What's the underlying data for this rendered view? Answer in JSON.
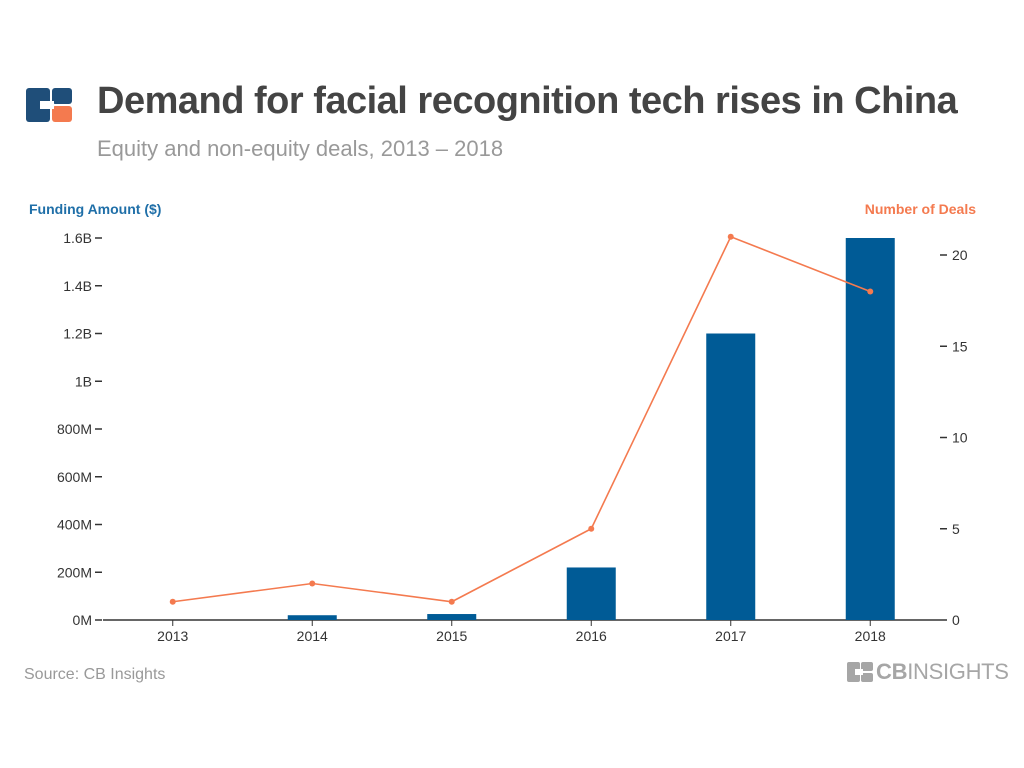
{
  "header": {
    "title": "Demand for facial recognition tech rises in China",
    "subtitle": "Equity and non-equity deals, 2013  –  2018"
  },
  "footer": {
    "source": "Source: CB Insights",
    "brand_bold": "CB",
    "brand_rest": "INSIGHTS"
  },
  "colors": {
    "bars": "#005b96",
    "line": "#f47a4f",
    "left_axis_label": "#1f6fa8",
    "right_axis_label": "#f47a4f",
    "logo_blue": "#1f4e79",
    "logo_orange": "#f47a4f"
  },
  "chart_data": {
    "type": "bar",
    "categories": [
      "2013",
      "2014",
      "2015",
      "2016",
      "2017",
      "2018"
    ],
    "series": [
      {
        "name": "Funding Amount ($)",
        "type": "bar",
        "axis": "left",
        "values": [
          0,
          20000000,
          25000000,
          220000000,
          1200000000,
          1600000000
        ]
      },
      {
        "name": "Number of Deals",
        "type": "line",
        "axis": "right",
        "values": [
          1,
          2,
          1,
          5,
          21,
          18
        ]
      }
    ],
    "ylabel": "Funding Amount ($)",
    "ylabel_right": "Number of Deals",
    "ylim": [
      0,
      1600000000
    ],
    "ylim_right": [
      0,
      20
    ],
    "yticks": [
      0,
      200000000,
      400000000,
      600000000,
      800000000,
      1000000000,
      1200000000,
      1400000000,
      1600000000
    ],
    "ytick_labels": [
      "0M",
      "200M",
      "400M",
      "600M",
      "800M",
      "1B",
      "1.2B",
      "1.4B",
      "1.6B"
    ],
    "yticks_right": [
      0,
      5,
      10,
      15,
      20
    ],
    "ytick_labels_right": [
      "0",
      "5",
      "10",
      "15",
      "20"
    ],
    "grid": false,
    "legend": "axis-labels"
  }
}
